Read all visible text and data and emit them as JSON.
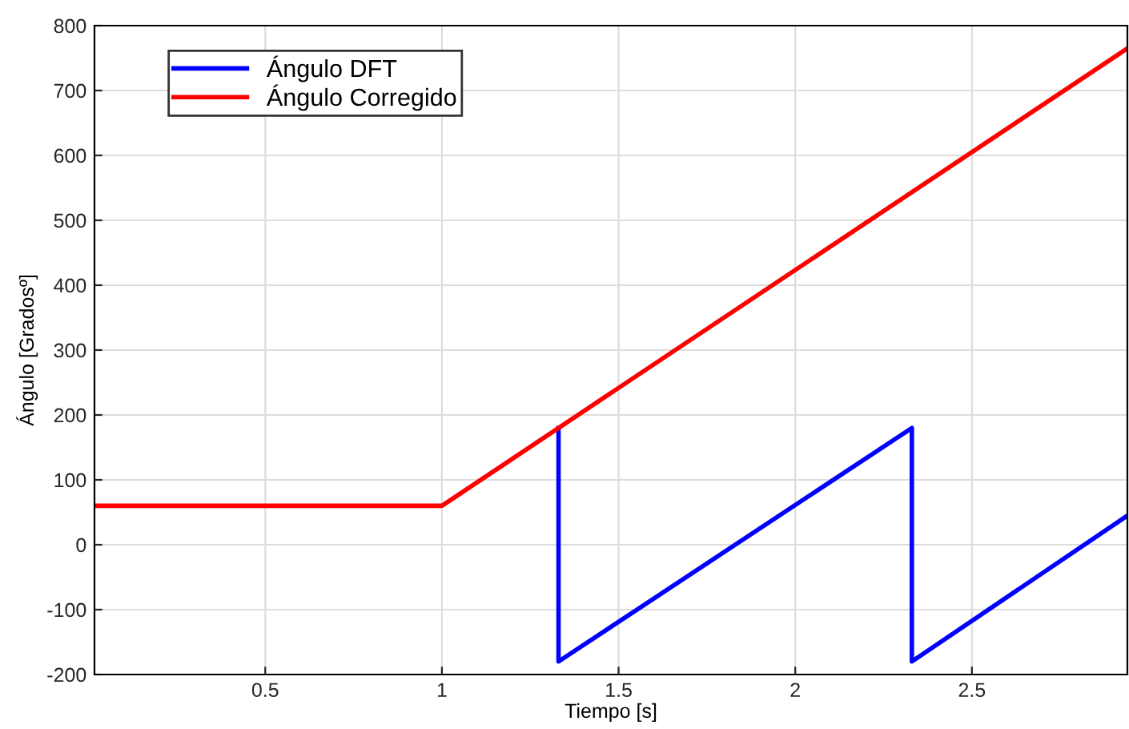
{
  "chart_data": {
    "type": "line",
    "xlabel": "Tiempo [s]",
    "ylabel": "Ángulo [Gradosº]",
    "series": [
      {
        "name": "Ángulo DFT",
        "color": "#0000ff",
        "x": [
          1.33,
          1.33,
          2.33,
          2.33,
          2.94
        ],
        "values": [
          180,
          -180,
          180,
          -180,
          45
        ]
      },
      {
        "name": "Ángulo Corregido",
        "color": "#ff0000",
        "x": [
          0.0167,
          1.0,
          2.94
        ],
        "values": [
          60,
          60,
          765
        ]
      }
    ],
    "xlim": [
      0.0167,
      2.94
    ],
    "ylim": [
      -200,
      800
    ],
    "xticks": [
      0.5,
      1,
      1.5,
      2,
      2.5
    ],
    "yticks": [
      -200,
      -100,
      0,
      100,
      200,
      300,
      400,
      500,
      600,
      700,
      800
    ],
    "grid": true,
    "legend": "top left",
    "marker": "none",
    "line_style": "solid"
  }
}
